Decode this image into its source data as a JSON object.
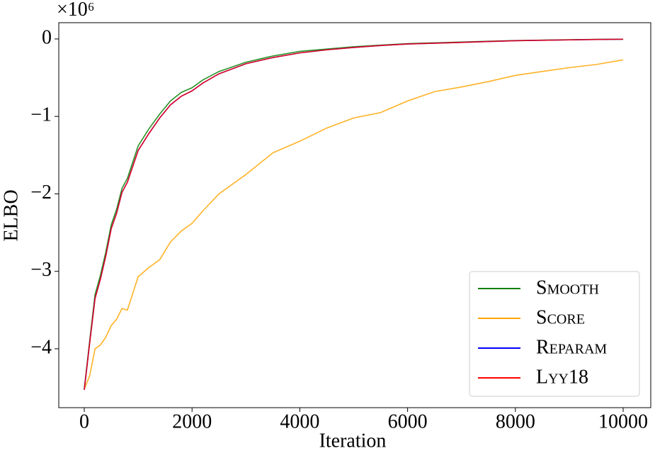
{
  "chart_data": {
    "type": "line",
    "xlabel": "Iteration",
    "ylabel": "ELBO",
    "y_multiplier": "×10⁶",
    "x": [
      0,
      100,
      200,
      300,
      400,
      500,
      600,
      700,
      800,
      1000,
      1200,
      1400,
      1600,
      1800,
      2000,
      2200,
      2500,
      3000,
      3500,
      4000,
      4500,
      5000,
      5500,
      6000,
      6500,
      7000,
      7500,
      8000,
      8500,
      9000,
      9500,
      10000
    ],
    "series": [
      {
        "name": "Smooth",
        "color": "#008000",
        "values": [
          -4.52,
          -3.9,
          -3.3,
          -3.05,
          -2.75,
          -2.4,
          -2.2,
          -1.93,
          -1.8,
          -1.38,
          -1.16,
          -0.97,
          -0.8,
          -0.69,
          -0.63,
          -0.53,
          -0.42,
          -0.3,
          -0.22,
          -0.16,
          -0.13,
          -0.1,
          -0.08,
          -0.06,
          -0.05,
          -0.04,
          -0.03,
          -0.02,
          -0.015,
          -0.01,
          -0.005,
          -0.003
        ]
      },
      {
        "name": "Score",
        "color": "#ffa500",
        "values": [
          -4.52,
          -4.35,
          -4.0,
          -3.95,
          -3.85,
          -3.7,
          -3.62,
          -3.48,
          -3.5,
          -3.07,
          -2.95,
          -2.85,
          -2.62,
          -2.48,
          -2.38,
          -2.22,
          -2.0,
          -1.75,
          -1.47,
          -1.32,
          -1.15,
          -1.02,
          -0.95,
          -0.8,
          -0.68,
          -0.62,
          -0.55,
          -0.47,
          -0.42,
          -0.37,
          -0.33,
          -0.27
        ]
      },
      {
        "name": "Reparam",
        "color": "#0000ff",
        "values": [
          -4.53,
          -3.93,
          -3.35,
          -3.1,
          -2.8,
          -2.45,
          -2.25,
          -1.98,
          -1.85,
          -1.44,
          -1.22,
          -1.02,
          -0.85,
          -0.74,
          -0.67,
          -0.57,
          -0.45,
          -0.32,
          -0.24,
          -0.18,
          -0.14,
          -0.11,
          -0.085,
          -0.065,
          -0.055,
          -0.045,
          -0.033,
          -0.023,
          -0.017,
          -0.012,
          -0.007,
          -0.004
        ]
      },
      {
        "name": "Lyy18",
        "color": "#ff0000",
        "values": [
          -4.53,
          -3.93,
          -3.35,
          -3.1,
          -2.8,
          -2.45,
          -2.25,
          -1.98,
          -1.85,
          -1.44,
          -1.22,
          -1.02,
          -0.85,
          -0.74,
          -0.67,
          -0.57,
          -0.45,
          -0.32,
          -0.24,
          -0.18,
          -0.14,
          -0.11,
          -0.085,
          -0.065,
          -0.055,
          -0.045,
          -0.033,
          -0.023,
          -0.017,
          -0.012,
          -0.007,
          -0.004
        ]
      }
    ],
    "xlim": [
      -473,
      10512
    ],
    "ylim": [
      -4.76,
      0.21
    ],
    "xticks": [
      0,
      2000,
      4000,
      6000,
      8000,
      10000
    ],
    "yticks": [
      {
        "value": -4,
        "label": "−4"
      },
      {
        "value": -3,
        "label": "−3"
      },
      {
        "value": -2,
        "label": "−2"
      },
      {
        "value": -1,
        "label": "−1"
      },
      0
    ],
    "legend": "lower right"
  }
}
